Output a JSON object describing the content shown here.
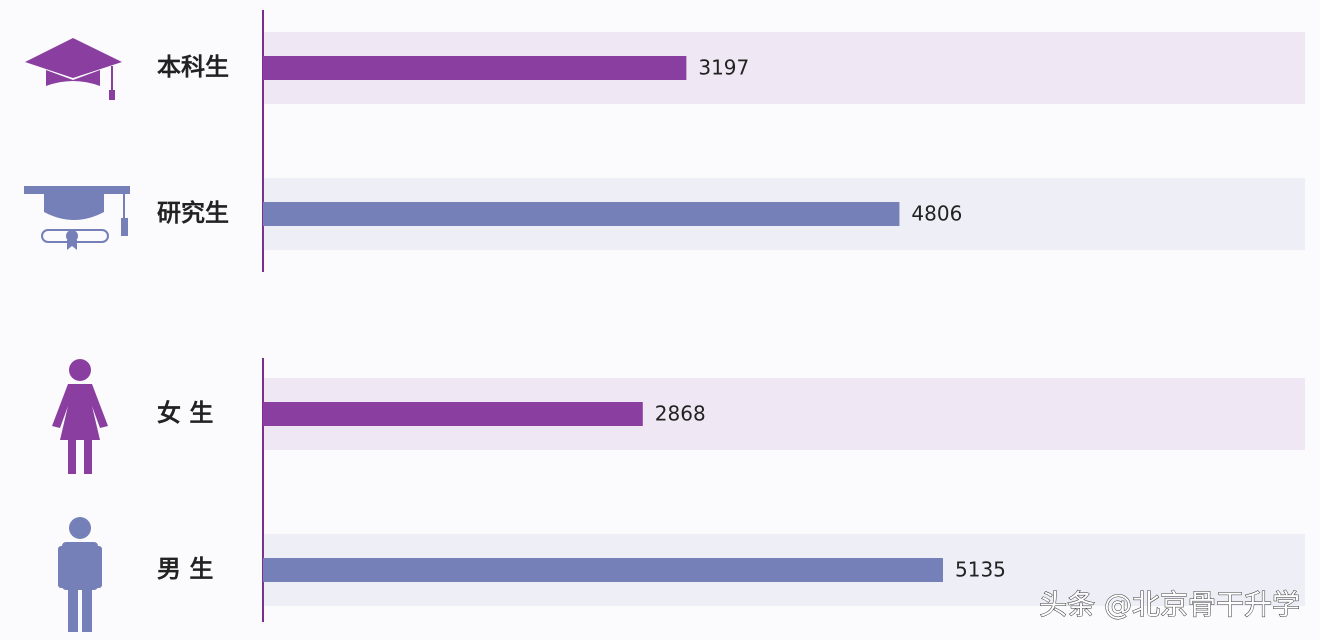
{
  "chart_data": {
    "type": "bar",
    "categories": [
      "本科生",
      "研究生",
      "女 生",
      "男 生"
    ],
    "values": [
      3197,
      4806,
      2868,
      5135
    ],
    "colors": [
      "#8a3fa0",
      "#7580b8",
      "#8a3fa0",
      "#7580b8"
    ],
    "watermark": "头条 @北京骨干升学"
  }
}
